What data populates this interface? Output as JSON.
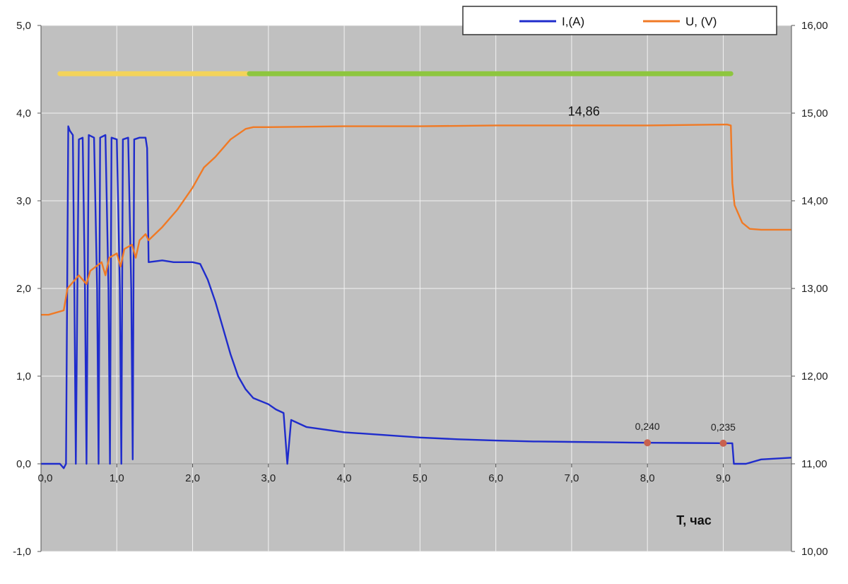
{
  "chart_data": {
    "type": "line",
    "xlabel": "T, час",
    "x_ticks": [
      "0,0",
      "1,0",
      "2,0",
      "3,0",
      "4,0",
      "5,0",
      "6,0",
      "7,0",
      "8,0",
      "9,0"
    ],
    "y_left_ticks": [
      "5,0",
      "4,0",
      "3,0",
      "2,0",
      "1,0",
      "0,0",
      "-1,0"
    ],
    "y_right_ticks": [
      "16,00",
      "15,00",
      "14,00",
      "13,00",
      "12,00",
      "11,00",
      "10,00"
    ],
    "xlim": [
      0,
      9.9
    ],
    "ylim_left": [
      -1.0,
      5.0
    ],
    "ylim_right": [
      10.0,
      16.0
    ],
    "grid": true,
    "legend_position": "top-right",
    "colors": {
      "current": "#1f2ccc",
      "voltage": "#f07a25",
      "phase1": "#f3d35a",
      "phase2": "#8ec63f",
      "marker": "#c8614e",
      "plot_bg": "#c0c0c0"
    },
    "series": [
      {
        "name": "I,(A)",
        "axis": "left",
        "points": [
          [
            0.0,
            0.0
          ],
          [
            0.25,
            0.0
          ],
          [
            0.3,
            -0.05
          ],
          [
            0.33,
            0.0
          ],
          [
            0.36,
            3.85
          ],
          [
            0.38,
            3.8
          ],
          [
            0.42,
            3.75
          ],
          [
            0.44,
            2.0
          ],
          [
            0.46,
            0.0
          ],
          [
            0.48,
            2.0
          ],
          [
            0.5,
            3.7
          ],
          [
            0.55,
            3.72
          ],
          [
            0.58,
            2.0
          ],
          [
            0.6,
            0.0
          ],
          [
            0.63,
            3.75
          ],
          [
            0.7,
            3.72
          ],
          [
            0.74,
            2.0
          ],
          [
            0.76,
            0.0
          ],
          [
            0.78,
            3.72
          ],
          [
            0.85,
            3.75
          ],
          [
            0.89,
            2.0
          ],
          [
            0.91,
            0.0
          ],
          [
            0.93,
            3.72
          ],
          [
            1.0,
            3.7
          ],
          [
            1.04,
            2.0
          ],
          [
            1.06,
            0.0
          ],
          [
            1.08,
            3.7
          ],
          [
            1.15,
            3.72
          ],
          [
            1.19,
            2.0
          ],
          [
            1.21,
            0.05
          ],
          [
            1.23,
            3.7
          ],
          [
            1.3,
            3.72
          ],
          [
            1.38,
            3.72
          ],
          [
            1.4,
            3.6
          ],
          [
            1.42,
            2.3
          ],
          [
            1.6,
            2.32
          ],
          [
            1.75,
            2.3
          ],
          [
            1.9,
            2.3
          ],
          [
            2.0,
            2.3
          ],
          [
            2.1,
            2.28
          ],
          [
            2.2,
            2.1
          ],
          [
            2.3,
            1.85
          ],
          [
            2.4,
            1.55
          ],
          [
            2.5,
            1.25
          ],
          [
            2.6,
            1.0
          ],
          [
            2.7,
            0.85
          ],
          [
            2.8,
            0.75
          ],
          [
            3.0,
            0.68
          ],
          [
            3.1,
            0.62
          ],
          [
            3.2,
            0.58
          ],
          [
            3.25,
            0.0
          ],
          [
            3.3,
            0.5
          ],
          [
            3.5,
            0.42
          ],
          [
            4.0,
            0.36
          ],
          [
            4.5,
            0.33
          ],
          [
            5.0,
            0.3
          ],
          [
            5.5,
            0.28
          ],
          [
            6.0,
            0.265
          ],
          [
            6.5,
            0.255
          ],
          [
            7.0,
            0.25
          ],
          [
            7.5,
            0.245
          ],
          [
            8.0,
            0.24
          ],
          [
            8.5,
            0.238
          ],
          [
            9.0,
            0.235
          ],
          [
            9.12,
            0.235
          ],
          [
            9.14,
            0.0
          ],
          [
            9.3,
            0.0
          ],
          [
            9.5,
            0.05
          ],
          [
            9.9,
            0.07
          ]
        ]
      },
      {
        "name": "U, (V)",
        "axis": "right",
        "points": [
          [
            0.0,
            12.7
          ],
          [
            0.1,
            12.7
          ],
          [
            0.3,
            12.75
          ],
          [
            0.35,
            13.0
          ],
          [
            0.5,
            13.15
          ],
          [
            0.6,
            13.05
          ],
          [
            0.65,
            13.2
          ],
          [
            0.8,
            13.3
          ],
          [
            0.85,
            13.15
          ],
          [
            0.9,
            13.35
          ],
          [
            1.0,
            13.4
          ],
          [
            1.05,
            13.25
          ],
          [
            1.1,
            13.45
          ],
          [
            1.2,
            13.5
          ],
          [
            1.25,
            13.35
          ],
          [
            1.3,
            13.55
          ],
          [
            1.38,
            13.62
          ],
          [
            1.42,
            13.55
          ],
          [
            1.6,
            13.7
          ],
          [
            1.8,
            13.9
          ],
          [
            2.0,
            14.15
          ],
          [
            2.15,
            14.38
          ],
          [
            2.3,
            14.5
          ],
          [
            2.4,
            14.6
          ],
          [
            2.5,
            14.7
          ],
          [
            2.6,
            14.76
          ],
          [
            2.7,
            14.82
          ],
          [
            2.8,
            14.84
          ],
          [
            3.0,
            14.84
          ],
          [
            4.0,
            14.85
          ],
          [
            5.0,
            14.85
          ],
          [
            6.0,
            14.86
          ],
          [
            7.0,
            14.86
          ],
          [
            8.0,
            14.86
          ],
          [
            9.05,
            14.87
          ],
          [
            9.1,
            14.86
          ],
          [
            9.12,
            14.2
          ],
          [
            9.15,
            13.95
          ],
          [
            9.25,
            13.75
          ],
          [
            9.35,
            13.68
          ],
          [
            9.5,
            13.67
          ],
          [
            9.9,
            13.67
          ]
        ]
      }
    ],
    "phase_bars": [
      {
        "color": "#f3d35a",
        "x": [
          0.25,
          2.75
        ],
        "y_left": 4.45
      },
      {
        "color": "#8ec63f",
        "x": [
          2.75,
          9.1
        ],
        "y_left": 4.45
      }
    ],
    "annotations": [
      {
        "text": "14,86",
        "x": 8.0,
        "y_right": 14.86,
        "axis": "right"
      },
      {
        "text": "0,240",
        "x": 8.0,
        "y_left": 0.24,
        "axis": "left"
      },
      {
        "text": "0,235",
        "x": 9.0,
        "y_left": 0.235,
        "axis": "left"
      }
    ]
  }
}
